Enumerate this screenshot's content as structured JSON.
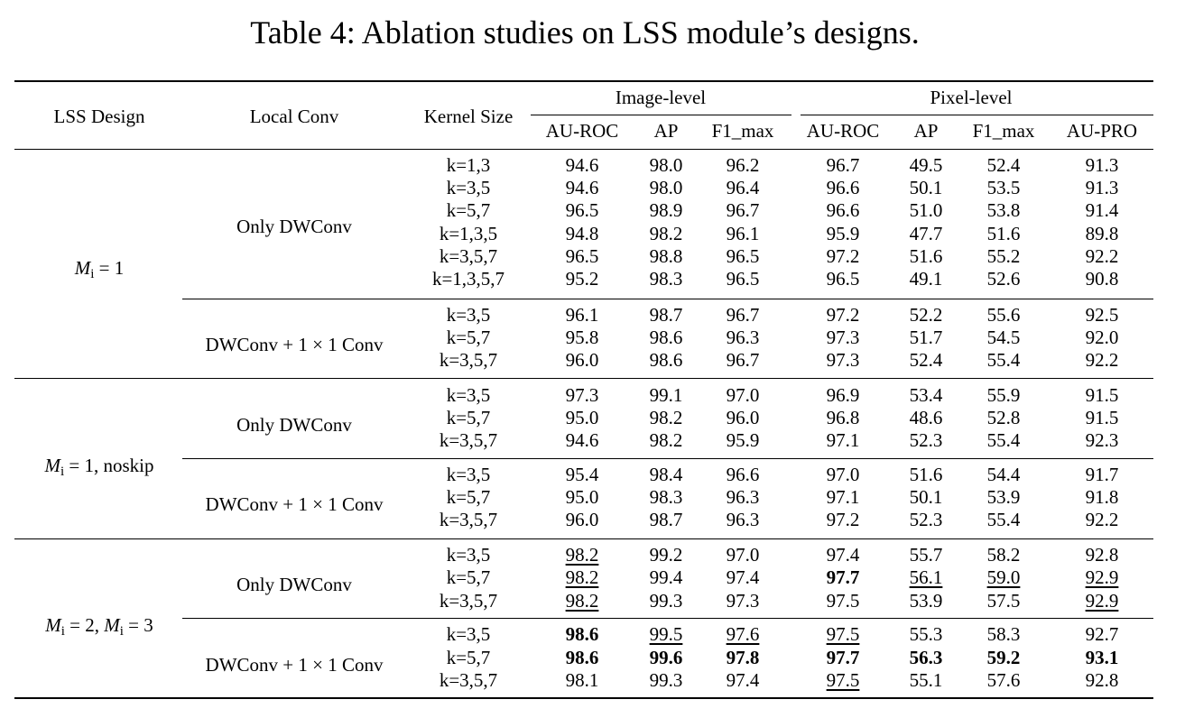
{
  "caption": "Table 4: Ablation studies on LSS module’s designs.",
  "headers": {
    "lss_design": "LSS Design",
    "local_conv": "Local Conv",
    "kernel_size": "Kernel Size",
    "image_level": "Image-level",
    "pixel_level": "Pixel-level",
    "image_cols": [
      "AU-ROC",
      "AP",
      "F1_max"
    ],
    "pixel_cols": [
      "AU-ROC",
      "AP",
      "F1_max",
      "AU-PRO"
    ]
  },
  "designs": [
    {
      "M": "M",
      "sub": "i",
      "rest": " = 1",
      "suffix": ""
    },
    {
      "M": "M",
      "sub": "i",
      "rest": " = 1",
      "suffix": ", noskip"
    },
    {
      "M": "M",
      "sub": "i",
      "rest": " = 2, ",
      "M2": "M",
      "sub2": "i",
      "rest2": " = 3",
      "suffix": ""
    }
  ],
  "conv_labels": [
    "Only DWConv",
    "DWConv + 1 × 1 Conv"
  ],
  "rows": [
    {
      "k": "k=1,3",
      "v": [
        "94.6",
        "98.0",
        "96.2",
        "96.7",
        "49.5",
        "52.4",
        "91.3"
      ],
      "b": [
        0,
        0,
        0,
        0,
        0,
        0,
        0
      ],
      "u": [
        0,
        0,
        0,
        0,
        0,
        0,
        0
      ]
    },
    {
      "k": "k=3,5",
      "v": [
        "94.6",
        "98.0",
        "96.4",
        "96.6",
        "50.1",
        "53.5",
        "91.3"
      ],
      "b": [
        0,
        0,
        0,
        0,
        0,
        0,
        0
      ],
      "u": [
        0,
        0,
        0,
        0,
        0,
        0,
        0
      ]
    },
    {
      "k": "k=5,7",
      "v": [
        "96.5",
        "98.9",
        "96.7",
        "96.6",
        "51.0",
        "53.8",
        "91.4"
      ],
      "b": [
        0,
        0,
        0,
        0,
        0,
        0,
        0
      ],
      "u": [
        0,
        0,
        0,
        0,
        0,
        0,
        0
      ]
    },
    {
      "k": "k=1,3,5",
      "v": [
        "94.8",
        "98.2",
        "96.1",
        "95.9",
        "47.7",
        "51.6",
        "89.8"
      ],
      "b": [
        0,
        0,
        0,
        0,
        0,
        0,
        0
      ],
      "u": [
        0,
        0,
        0,
        0,
        0,
        0,
        0
      ]
    },
    {
      "k": "k=3,5,7",
      "v": [
        "96.5",
        "98.8",
        "96.5",
        "97.2",
        "51.6",
        "55.2",
        "92.2"
      ],
      "b": [
        0,
        0,
        0,
        0,
        0,
        0,
        0
      ],
      "u": [
        0,
        0,
        0,
        0,
        0,
        0,
        0
      ]
    },
    {
      "k": "k=1,3,5,7",
      "v": [
        "95.2",
        "98.3",
        "96.5",
        "96.5",
        "49.1",
        "52.6",
        "90.8"
      ],
      "b": [
        0,
        0,
        0,
        0,
        0,
        0,
        0
      ],
      "u": [
        0,
        0,
        0,
        0,
        0,
        0,
        0
      ]
    },
    {
      "k": "k=3,5",
      "v": [
        "96.1",
        "98.7",
        "96.7",
        "97.2",
        "52.2",
        "55.6",
        "92.5"
      ],
      "b": [
        0,
        0,
        0,
        0,
        0,
        0,
        0
      ],
      "u": [
        0,
        0,
        0,
        0,
        0,
        0,
        0
      ]
    },
    {
      "k": "k=5,7",
      "v": [
        "95.8",
        "98.6",
        "96.3",
        "97.3",
        "51.7",
        "54.5",
        "92.0"
      ],
      "b": [
        0,
        0,
        0,
        0,
        0,
        0,
        0
      ],
      "u": [
        0,
        0,
        0,
        0,
        0,
        0,
        0
      ]
    },
    {
      "k": "k=3,5,7",
      "v": [
        "96.0",
        "98.6",
        "96.7",
        "97.3",
        "52.4",
        "55.4",
        "92.2"
      ],
      "b": [
        0,
        0,
        0,
        0,
        0,
        0,
        0
      ],
      "u": [
        0,
        0,
        0,
        0,
        0,
        0,
        0
      ]
    },
    {
      "k": "k=3,5",
      "v": [
        "97.3",
        "99.1",
        "97.0",
        "96.9",
        "53.4",
        "55.9",
        "91.5"
      ],
      "b": [
        0,
        0,
        0,
        0,
        0,
        0,
        0
      ],
      "u": [
        0,
        0,
        0,
        0,
        0,
        0,
        0
      ]
    },
    {
      "k": "k=5,7",
      "v": [
        "95.0",
        "98.2",
        "96.0",
        "96.8",
        "48.6",
        "52.8",
        "91.5"
      ],
      "b": [
        0,
        0,
        0,
        0,
        0,
        0,
        0
      ],
      "u": [
        0,
        0,
        0,
        0,
        0,
        0,
        0
      ]
    },
    {
      "k": "k=3,5,7",
      "v": [
        "94.6",
        "98.2",
        "95.9",
        "97.1",
        "52.3",
        "55.4",
        "92.3"
      ],
      "b": [
        0,
        0,
        0,
        0,
        0,
        0,
        0
      ],
      "u": [
        0,
        0,
        0,
        0,
        0,
        0,
        0
      ]
    },
    {
      "k": "k=3,5",
      "v": [
        "95.4",
        "98.4",
        "96.6",
        "97.0",
        "51.6",
        "54.4",
        "91.7"
      ],
      "b": [
        0,
        0,
        0,
        0,
        0,
        0,
        0
      ],
      "u": [
        0,
        0,
        0,
        0,
        0,
        0,
        0
      ]
    },
    {
      "k": "k=5,7",
      "v": [
        "95.0",
        "98.3",
        "96.3",
        "97.1",
        "50.1",
        "53.9",
        "91.8"
      ],
      "b": [
        0,
        0,
        0,
        0,
        0,
        0,
        0
      ],
      "u": [
        0,
        0,
        0,
        0,
        0,
        0,
        0
      ]
    },
    {
      "k": "k=3,5,7",
      "v": [
        "96.0",
        "98.7",
        "96.3",
        "97.2",
        "52.3",
        "55.4",
        "92.2"
      ],
      "b": [
        0,
        0,
        0,
        0,
        0,
        0,
        0
      ],
      "u": [
        0,
        0,
        0,
        0,
        0,
        0,
        0
      ]
    },
    {
      "k": "k=3,5",
      "v": [
        "98.2",
        "99.2",
        "97.0",
        "97.4",
        "55.7",
        "58.2",
        "92.8"
      ],
      "b": [
        0,
        0,
        0,
        0,
        0,
        0,
        0
      ],
      "u": [
        1,
        0,
        0,
        0,
        0,
        0,
        0
      ]
    },
    {
      "k": "k=5,7",
      "v": [
        "98.2",
        "99.4",
        "97.4",
        "97.7",
        "56.1",
        "59.0",
        "92.9"
      ],
      "b": [
        0,
        0,
        0,
        1,
        0,
        0,
        0
      ],
      "u": [
        1,
        0,
        0,
        0,
        1,
        1,
        1
      ]
    },
    {
      "k": "k=3,5,7",
      "v": [
        "98.2",
        "99.3",
        "97.3",
        "97.5",
        "53.9",
        "57.5",
        "92.9"
      ],
      "b": [
        0,
        0,
        0,
        0,
        0,
        0,
        0
      ],
      "u": [
        1,
        0,
        0,
        0,
        0,
        0,
        1
      ]
    },
    {
      "k": "k=3,5",
      "v": [
        "98.6",
        "99.5",
        "97.6",
        "97.5",
        "55.3",
        "58.3",
        "92.7"
      ],
      "b": [
        1,
        0,
        0,
        0,
        0,
        0,
        0
      ],
      "u": [
        0,
        1,
        1,
        1,
        0,
        0,
        0
      ]
    },
    {
      "k": "k=5,7",
      "v": [
        "98.6",
        "99.6",
        "97.8",
        "97.7",
        "56.3",
        "59.2",
        "93.1"
      ],
      "b": [
        1,
        1,
        1,
        1,
        1,
        1,
        1
      ],
      "u": [
        0,
        0,
        0,
        0,
        0,
        0,
        0
      ]
    },
    {
      "k": "k=3,5,7",
      "v": [
        "98.1",
        "99.3",
        "97.4",
        "97.5",
        "55.1",
        "57.6",
        "92.8"
      ],
      "b": [
        0,
        0,
        0,
        0,
        0,
        0,
        0
      ],
      "u": [
        0,
        0,
        0,
        1,
        0,
        0,
        0
      ]
    }
  ]
}
